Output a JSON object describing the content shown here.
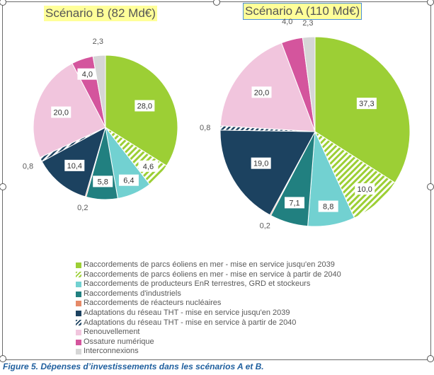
{
  "chart_data": [
    {
      "type": "pie",
      "title": "Scénario B (82 Md€)",
      "values": [
        28.0,
        4.6,
        6.4,
        5.8,
        0.2,
        10.4,
        0.8,
        20.0,
        4.0,
        2.3
      ],
      "labels": [
        "28,0",
        "4,6",
        "6,4",
        "5,8",
        "0,2",
        "10,4",
        "0,8",
        "20,0",
        "4,0",
        "2,3"
      ]
    },
    {
      "type": "pie",
      "title": "Scénario A (110 Md€)",
      "values": [
        37.3,
        10.0,
        8.8,
        7.1,
        0.2,
        19.0,
        0.8,
        20.0,
        4.0,
        2.3
      ],
      "labels": [
        "37,3",
        "10,0",
        "8,8",
        "7,1",
        "0,2",
        "19,0",
        "0,8",
        "20,0",
        "4,0",
        "2,3"
      ]
    }
  ],
  "legend": [
    {
      "label": "Raccordements de parcs éoliens en mer - mise en service jusqu'en 2039",
      "color": "#9ccf35",
      "hatched": false
    },
    {
      "label": "Raccordements de parcs éoliens en mer - mise en service à partir de 2040",
      "color": "#9ccf35",
      "hatched": true
    },
    {
      "label": "Raccordements de producteurs EnR terrestres, GRD et stockeurs",
      "color": "#72d1d1",
      "hatched": false
    },
    {
      "label": "Raccordements d'industriels",
      "color": "#218080",
      "hatched": false
    },
    {
      "label": "Raccordements de réacteurs nucléaires",
      "color": "#e58a68",
      "hatched": false
    },
    {
      "label": "Adaptations du réseau THT - mise en service jusqu'en 2039",
      "color": "#1c4260",
      "hatched": false
    },
    {
      "label": "Adaptations du réseau THT - mise en service à partir de 2040",
      "color": "#1c4260",
      "hatched": true
    },
    {
      "label": "Renouvellement",
      "color": "#f1c5dd",
      "hatched": false
    },
    {
      "label": "Ossature numérique",
      "color": "#d4559d",
      "hatched": false
    },
    {
      "label": "Interconnexions",
      "color": "#d6d6d6",
      "hatched": false
    }
  ],
  "caption": "Figure 5. Dépenses d’investissements dans les scénarios A et B."
}
